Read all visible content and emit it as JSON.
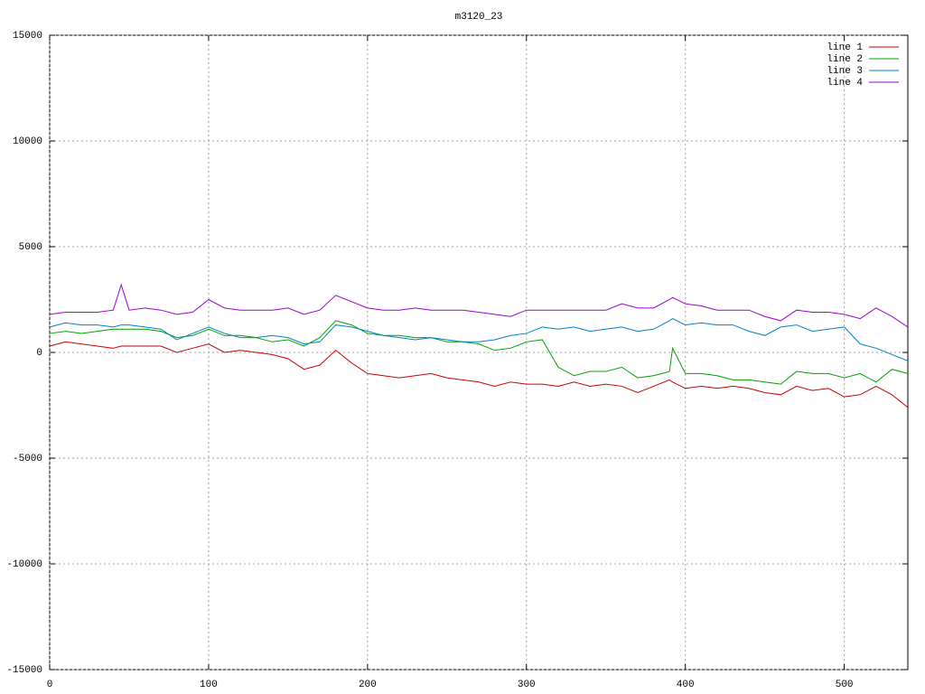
{
  "chart_data": {
    "type": "line",
    "title": "m3120_23",
    "x": [
      0,
      10,
      20,
      30,
      40,
      45,
      50,
      60,
      70,
      80,
      90,
      100,
      110,
      120,
      130,
      140,
      150,
      160,
      170,
      180,
      190,
      200,
      210,
      220,
      230,
      240,
      250,
      260,
      270,
      280,
      290,
      300,
      310,
      320,
      330,
      340,
      350,
      360,
      370,
      380,
      390,
      392,
      400,
      410,
      420,
      430,
      440,
      450,
      460,
      470,
      480,
      490,
      500,
      510,
      520,
      530,
      540
    ],
    "series": [
      {
        "name": "line 1",
        "color": "#cc0000",
        "values": [
          300,
          500,
          400,
          300,
          200,
          300,
          300,
          300,
          300,
          0,
          200,
          400,
          0,
          100,
          0,
          -100,
          -300,
          -800,
          -600,
          100,
          -500,
          -1000,
          -1100,
          -1200,
          -1100,
          -1000,
          -1200,
          -1300,
          -1400,
          -1600,
          -1400,
          -1500,
          -1500,
          -1600,
          -1400,
          -1600,
          -1500,
          -1600,
          -1900,
          -1600,
          -1300,
          -1400,
          -1700,
          -1600,
          -1700,
          -1600,
          -1700,
          -1900,
          -2000,
          -1600,
          -1800,
          -1700,
          -2100,
          -2000,
          -1600,
          -2000,
          -2600
        ]
      },
      {
        "name": "line 2",
        "color": "#00a000",
        "values": [
          900,
          1000,
          900,
          1000,
          1100,
          1100,
          1100,
          1100,
          1000,
          700,
          800,
          1100,
          800,
          800,
          700,
          500,
          600,
          300,
          700,
          1500,
          1300,
          900,
          800,
          800,
          700,
          700,
          500,
          500,
          400,
          100,
          200,
          500,
          600,
          -700,
          -1100,
          -900,
          -900,
          -700,
          -1200,
          -1100,
          -900,
          200,
          -1000,
          -1000,
          -1100,
          -1300,
          -1300,
          -1400,
          -1500,
          -900,
          -1000,
          -1000,
          -1200,
          -1000,
          -1400,
          -800,
          -1000
        ]
      },
      {
        "name": "line 3",
        "color": "#0080c8",
        "values": [
          1200,
          1400,
          1300,
          1300,
          1200,
          1300,
          1300,
          1200,
          1100,
          600,
          900,
          1200,
          900,
          700,
          700,
          800,
          700,
          400,
          500,
          1300,
          1200,
          1000,
          800,
          700,
          600,
          700,
          600,
          500,
          500,
          600,
          800,
          900,
          1200,
          1100,
          1200,
          1000,
          1100,
          1200,
          1000,
          1100,
          1500,
          1600,
          1300,
          1400,
          1300,
          1300,
          1000,
          800,
          1200,
          1300,
          1000,
          1100,
          1200,
          400,
          200,
          -100,
          -400
        ]
      },
      {
        "name": "line 4",
        "color": "#a000d0",
        "values": [
          1800,
          1900,
          1900,
          1900,
          2000,
          3200,
          2000,
          2100,
          2000,
          1800,
          1900,
          2500,
          2100,
          2000,
          2000,
          2000,
          2100,
          1800,
          2000,
          2700,
          2400,
          2100,
          2000,
          2000,
          2100,
          2000,
          2000,
          2000,
          1900,
          1800,
          1700,
          2000,
          2000,
          2000,
          2000,
          2000,
          2000,
          2300,
          2100,
          2100,
          2500,
          2600,
          2300,
          2200,
          2000,
          2000,
          2000,
          1700,
          1500,
          2000,
          1900,
          1900,
          1800,
          1600,
          2100,
          1700,
          1200
        ]
      }
    ],
    "xlim": [
      0,
      540
    ],
    "xticks": [
      0,
      100,
      200,
      300,
      400,
      500
    ],
    "ylim": [
      -15000,
      15000
    ],
    "yticks": [
      -15000,
      -10000,
      -5000,
      0,
      5000,
      10000,
      15000
    ],
    "grid": true,
    "legend": "top-right"
  }
}
